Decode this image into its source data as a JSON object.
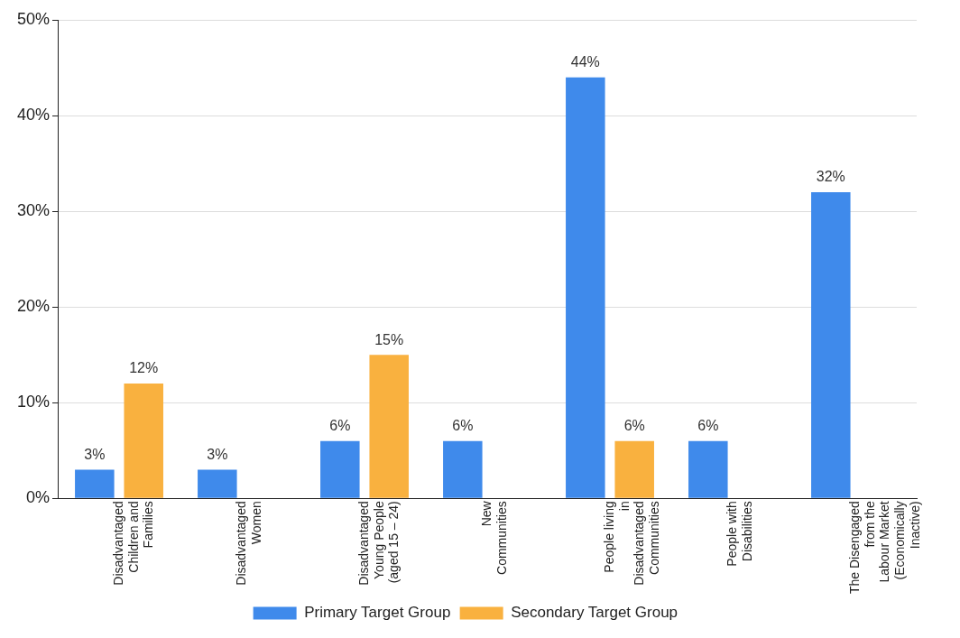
{
  "chart_data": {
    "type": "bar",
    "categories": [
      "Disadvantaged Children and Families",
      "Disadvantaged Women",
      "Disadvantaged Young People (aged 15 – 24)",
      "New Communities",
      "People living in Disadvantaged Communities",
      "People with Disabilities",
      "The Disengaged from the Labour Market (Economically Inactive)"
    ],
    "series": [
      {
        "name": "Primary Target Group",
        "color": "#3f8aeb",
        "values": [
          3,
          3,
          6,
          6,
          44,
          6,
          32
        ],
        "value_labels": [
          "3%",
          "3%",
          "6%",
          "6%",
          "44%",
          "6%",
          "32%"
        ]
      },
      {
        "name": "Secondary Target Group",
        "color": "#f9b13f",
        "values": [
          12,
          null,
          15,
          null,
          6,
          null,
          null
        ],
        "value_labels": [
          "12%",
          null,
          "15%",
          null,
          "6%",
          null,
          null
        ]
      }
    ],
    "ylim": [
      0,
      50
    ],
    "yticks": [
      {
        "value": 0,
        "label": "0%"
      },
      {
        "value": 10,
        "label": "10%"
      },
      {
        "value": 20,
        "label": "20%"
      },
      {
        "value": 30,
        "label": "30%"
      },
      {
        "value": 40,
        "label": "40%"
      },
      {
        "value": 50,
        "label": "50%"
      }
    ],
    "grid": "y",
    "legend": "bottom"
  }
}
